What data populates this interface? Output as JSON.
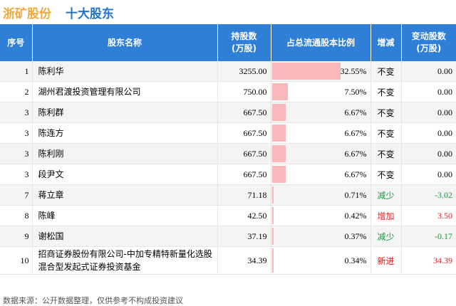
{
  "header": {
    "company": "浙矿股份",
    "title": "十大股东"
  },
  "columns": [
    "序号",
    "股东名称",
    "持股数\n(万股)",
    "占总流通股本比例",
    "增减",
    "变动股数\n(万股)"
  ],
  "rows": [
    {
      "idx": "1",
      "name": "陈利华",
      "shares": "3255.00",
      "ratio": "32.55%",
      "ratio_value": 32.55,
      "change": "不变",
      "change_type": "same",
      "delta": "0.00"
    },
    {
      "idx": "2",
      "name": "湖州君渡投资管理有限公司",
      "shares": "750.00",
      "ratio": "7.50%",
      "ratio_value": 7.5,
      "change": "不变",
      "change_type": "same",
      "delta": "0.00"
    },
    {
      "idx": "3",
      "name": "陈利群",
      "shares": "667.50",
      "ratio": "6.67%",
      "ratio_value": 6.67,
      "change": "不变",
      "change_type": "same",
      "delta": "0.00"
    },
    {
      "idx": "3",
      "name": "陈连方",
      "shares": "667.50",
      "ratio": "6.67%",
      "ratio_value": 6.67,
      "change": "不变",
      "change_type": "same",
      "delta": "0.00"
    },
    {
      "idx": "3",
      "name": "陈利刚",
      "shares": "667.50",
      "ratio": "6.67%",
      "ratio_value": 6.67,
      "change": "不变",
      "change_type": "same",
      "delta": "0.00"
    },
    {
      "idx": "3",
      "name": "段尹文",
      "shares": "667.50",
      "ratio": "6.67%",
      "ratio_value": 6.67,
      "change": "不变",
      "change_type": "same",
      "delta": "0.00"
    },
    {
      "idx": "7",
      "name": "蒋立章",
      "shares": "71.18",
      "ratio": "0.71%",
      "ratio_value": 0.71,
      "change": "减少",
      "change_type": "down",
      "delta": "-3.02"
    },
    {
      "idx": "8",
      "name": "陈峰",
      "shares": "42.50",
      "ratio": "0.42%",
      "ratio_value": 0.42,
      "change": "增加",
      "change_type": "up",
      "delta": "3.50"
    },
    {
      "idx": "9",
      "name": "谢松国",
      "shares": "37.19",
      "ratio": "0.37%",
      "ratio_value": 0.37,
      "change": "减少",
      "change_type": "down",
      "delta": "-0.17"
    },
    {
      "idx": "10",
      "name": "招商证券股份有限公司-中加专精特新量化选股混合型发起式证券投资基金",
      "shares": "34.39",
      "ratio": "0.34%",
      "ratio_value": 0.34,
      "change": "新进",
      "change_type": "new",
      "delta": "34.39"
    }
  ],
  "colors": {
    "header_bg": "#2f7fd6",
    "bar": "#f9b9bb",
    "up": "#e02020",
    "down": "#1a9a3a",
    "new": "#e02020",
    "same": "#000000"
  },
  "footer": "数据来源：公开数据整理，仅供参考不构成投资建议"
}
